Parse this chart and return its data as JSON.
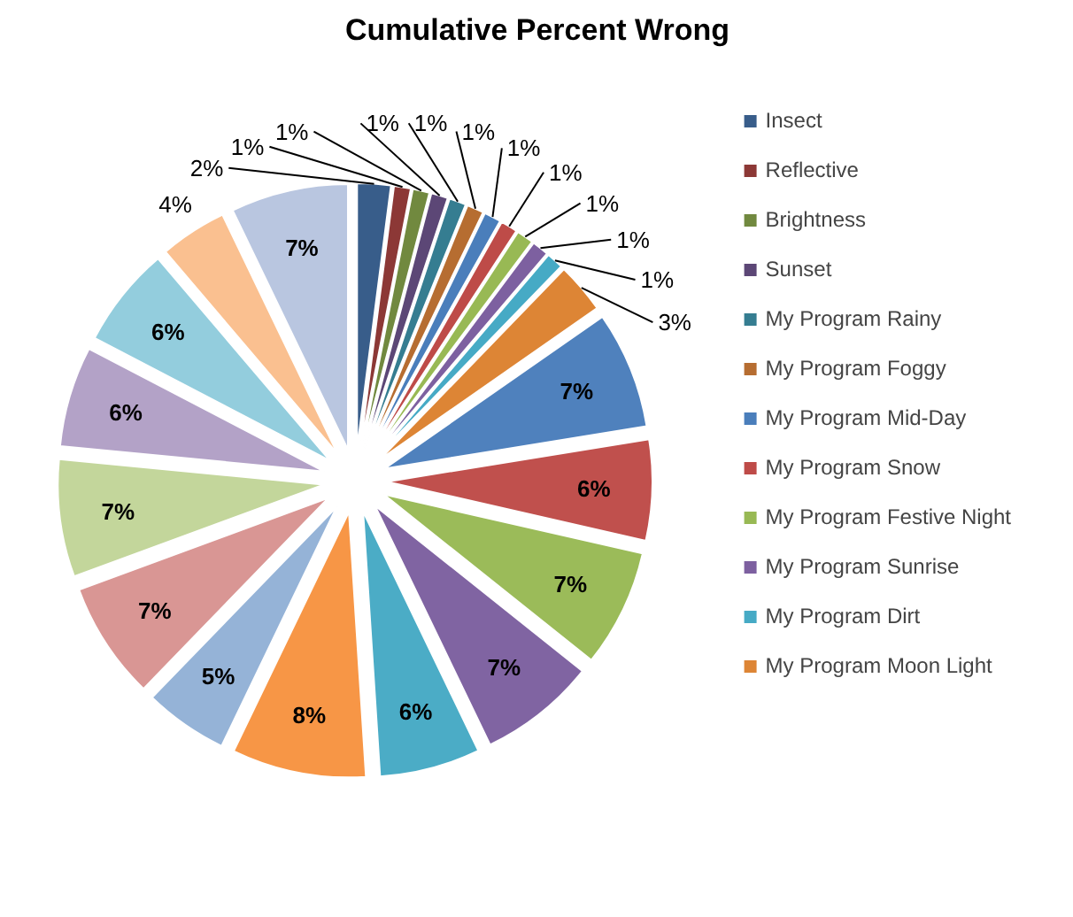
{
  "chart_data": {
    "type": "pie",
    "title": "Cumulative Percent Wrong",
    "categories": [
      "Insect",
      "Reflective",
      "Brightness",
      "Sunset",
      "My Program Rainy",
      "My Program Foggy",
      "My Program Mid-Day",
      "My Program Snow",
      "My Program Festive Night",
      "My Program Sunrise",
      "My Program Dirt",
      "My Program Moon Light",
      null,
      null,
      null,
      null,
      null,
      null,
      null,
      null,
      null,
      null,
      null,
      null,
      null
    ],
    "values": [
      2,
      1,
      1,
      1,
      1,
      1,
      1,
      1,
      1,
      1,
      1,
      3,
      7,
      6,
      7,
      7,
      6,
      8,
      5,
      7,
      7,
      6,
      6,
      4,
      7
    ],
    "value_labels": [
      "2%",
      "1%",
      "1%",
      "1%",
      "1%",
      "1%",
      "1%",
      "1%",
      "1%",
      "1%",
      "1%",
      "3%",
      "7%",
      "6%",
      "7%",
      "7%",
      "6%",
      "8%",
      "5%",
      "7%",
      "7%",
      "6%",
      "6%",
      "4%",
      "7%"
    ],
    "colors": [
      "#385d8a",
      "#8c3836",
      "#71893f",
      "#5c4776",
      "#357d91",
      "#b66d31",
      "#4a7ebb",
      "#be4b48",
      "#98b954",
      "#7d60a0",
      "#46aac5",
      "#dd8535",
      "#4f81bd",
      "#c0504d",
      "#9bbb59",
      "#8064a2",
      "#4bacc6",
      "#f79646",
      "#95b3d7",
      "#d99694",
      "#c3d69b",
      "#b3a2c7",
      "#93cddd",
      "#fac090",
      "#b9c6e0"
    ],
    "legend": "right"
  }
}
